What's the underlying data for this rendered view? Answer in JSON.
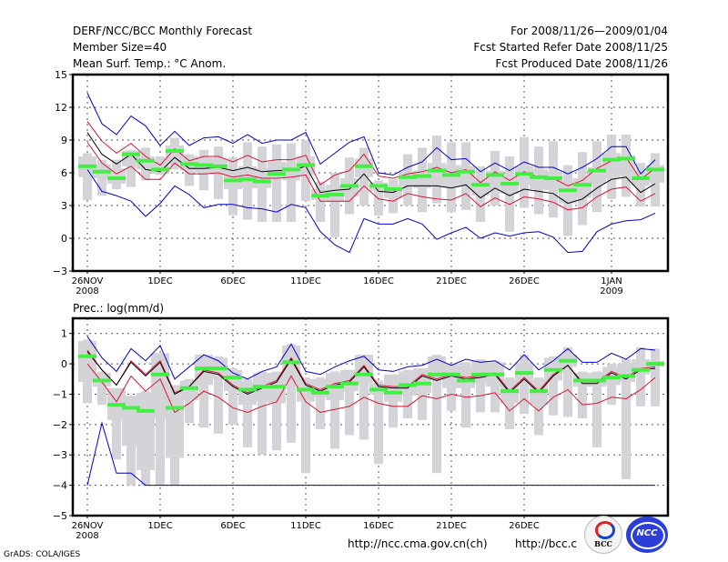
{
  "header": {
    "title": "DERF/NCC/BCC Monthly Forecast",
    "member_size": "Member Size=40",
    "variable": "Mean Surf. Temp.: °C Anom.",
    "period": "For 2008/11/26—2009/01/04",
    "started": "Fcst Started Refer Date 2008/11/25",
    "produced": "Fcst Produced Date 2008/11/26"
  },
  "footer": {
    "grads": "GrADS: COLA/IGES",
    "url_ncc": "http://ncc.cma.gov.cn(ch)",
    "url_bcc": "http://bcc.c",
    "logo_bcc": "BCC",
    "logo_ncc": "NCC"
  },
  "colors": {
    "envelope": "#0000cc",
    "spread": "#dd1133",
    "mean": "#000000",
    "median": "#44ee44",
    "box": "#d4d4d8"
  },
  "chart_data": [
    {
      "type": "line",
      "title": "Mean Surf. Temp.: °C Anom.",
      "xlabel": "",
      "ylabel": "°C Anom.",
      "ylim": [
        -3,
        15
      ],
      "yticks": [
        -3,
        0,
        3,
        6,
        9,
        12,
        15
      ],
      "grid": true,
      "x_start": "2008-11-26",
      "days": 40,
      "xtick_labels": [
        {
          "day": 0,
          "label": "26NOV",
          "sub": "2008"
        },
        {
          "day": 5,
          "label": "1DEC"
        },
        {
          "day": 10,
          "label": "6DEC"
        },
        {
          "day": 15,
          "label": "11DEC"
        },
        {
          "day": 20,
          "label": "16DEC"
        },
        {
          "day": 25,
          "label": "21DEC"
        },
        {
          "day": 30,
          "label": "26DEC"
        },
        {
          "day": 36,
          "label": "1JAN",
          "sub": "2009"
        }
      ],
      "series": [
        {
          "name": "max",
          "color_key": "envelope",
          "values": [
            13.3,
            10.5,
            9.5,
            11.2,
            10.3,
            8.5,
            9.8,
            8.5,
            9.2,
            9.3,
            8.7,
            9.5,
            8.7,
            9.0,
            9.0,
            9.7,
            6.8,
            7.8,
            8.8,
            9.3,
            6.0,
            5.8,
            6.5,
            7.0,
            8.3,
            7.2,
            7.3,
            6.1,
            6.9,
            6.2,
            7.0,
            6.5,
            6.5,
            5.9,
            6.5,
            7.3,
            8.4,
            8.4,
            5.9,
            7.2
          ]
        },
        {
          "name": "upper",
          "color_key": "spread",
          "values": [
            10.7,
            8.9,
            7.8,
            8.7,
            7.5,
            6.7,
            8.2,
            7.1,
            7.5,
            7.5,
            7.0,
            7.6,
            7.0,
            7.2,
            7.2,
            7.6,
            4.9,
            5.8,
            6.2,
            7.7,
            5.7,
            5.5,
            5.9,
            6.1,
            6.5,
            6.0,
            6.3,
            5.1,
            6.1,
            5.3,
            6.1,
            5.6,
            5.5,
            4.8,
            5.3,
            6.4,
            7.1,
            7.4,
            5.4,
            6.4
          ]
        },
        {
          "name": "mean",
          "color_key": "mean",
          "values": [
            9.7,
            7.7,
            6.8,
            7.7,
            6.3,
            6.1,
            7.4,
            6.4,
            6.4,
            6.5,
            6.2,
            6.5,
            6.1,
            6.2,
            6.2,
            6.6,
            4.2,
            4.4,
            4.5,
            5.9,
            4.3,
            4.2,
            4.8,
            4.8,
            4.8,
            4.6,
            4.9,
            3.7,
            4.6,
            3.9,
            4.5,
            4.3,
            4.1,
            3.2,
            3.6,
            4.6,
            5.4,
            5.6,
            4.2,
            5.0
          ]
        },
        {
          "name": "lower",
          "color_key": "spread",
          "values": [
            8.8,
            6.9,
            5.9,
            6.6,
            5.4,
            5.4,
            6.9,
            5.9,
            5.9,
            6.0,
            5.6,
            5.8,
            5.5,
            5.5,
            5.6,
            5.8,
            3.4,
            3.4,
            3.4,
            4.8,
            3.6,
            3.4,
            4.1,
            3.8,
            3.6,
            3.5,
            4.1,
            2.9,
            3.7,
            3.1,
            3.8,
            3.6,
            3.3,
            2.6,
            2.8,
            3.8,
            4.5,
            4.7,
            3.4,
            4.1
          ]
        },
        {
          "name": "min",
          "color_key": "envelope",
          "values": [
            6.3,
            4.3,
            3.9,
            3.4,
            2.0,
            3.2,
            4.8,
            4.0,
            2.8,
            3.1,
            3.1,
            2.8,
            2.7,
            2.4,
            3.1,
            2.8,
            0.6,
            -0.6,
            -1.3,
            1.8,
            1.3,
            1.3,
            1.8,
            1.3,
            -0.1,
            0.5,
            1.0,
            0.0,
            0.5,
            0.2,
            0.5,
            0.6,
            0.1,
            -1.3,
            -1.2,
            0.6,
            1.3,
            1.6,
            1.7,
            2.3
          ]
        },
        {
          "name": "median",
          "color_key": "median",
          "values": [
            6.6,
            6.1,
            5.5,
            7.7,
            7.1,
            6.3,
            8.0,
            6.8,
            6.7,
            6.6,
            5.3,
            5.4,
            5.2,
            5.9,
            6.3,
            6.7,
            3.9,
            4.0,
            4.8,
            6.6,
            4.8,
            4.5,
            5.6,
            5.7,
            6.2,
            5.8,
            6.1,
            4.9,
            5.8,
            5.0,
            5.9,
            5.6,
            5.5,
            4.4,
            4.9,
            6.2,
            7.2,
            7.3,
            5.5,
            6.3
          ]
        },
        {
          "name": "box_q1",
          "color_key": "box",
          "values": [
            5.6,
            5.5,
            5.0,
            6.6,
            6.3,
            5.9,
            6.8,
            6.2,
            6.0,
            5.9,
            4.5,
            4.6,
            4.6,
            5.5,
            5.3,
            5.8,
            3.5,
            3.3,
            3.8,
            5.6,
            4.3,
            3.7,
            4.8,
            4.6,
            4.9,
            4.7,
            4.7,
            3.9,
            4.4,
            4.1,
            4.9,
            4.5,
            4.4,
            3.2,
            3.7,
            5.0,
            5.5,
            5.7,
            4.8,
            5.1
          ]
        },
        {
          "name": "box_q3",
          "color_key": "box",
          "values": [
            7.5,
            6.8,
            6.4,
            8.0,
            7.5,
            7.0,
            8.5,
            7.5,
            7.4,
            7.3,
            6.3,
            6.6,
            6.4,
            7.0,
            6.9,
            7.5,
            4.5,
            4.9,
            5.5,
            7.3,
            5.1,
            4.9,
            6.1,
            6.2,
            6.9,
            6.7,
            6.6,
            5.3,
            6.2,
            5.5,
            6.6,
            6.3,
            6.1,
            5.3,
            5.5,
            6.5,
            7.8,
            7.6,
            6.0,
            6.7
          ]
        },
        {
          "name": "whisker_low",
          "color_key": "box",
          "values": [
            3.5,
            3.9,
            4.5,
            4.7,
            5.3,
            5.8,
            6.3,
            4.8,
            4.4,
            3.6,
            2.1,
            1.7,
            1.5,
            1.5,
            1.5,
            3.4,
            1.5,
            0.1,
            2.2,
            3.0,
            2.1,
            2.3,
            3.0,
            2.4,
            3.2,
            2.4,
            2.6,
            1.5,
            3.0,
            0.6,
            2.8,
            2.2,
            1.9,
            0.2,
            1.2,
            2.4,
            3.6,
            3.8,
            2.9,
            2.9
          ]
        },
        {
          "name": "whisker_high",
          "color_key": "box",
          "values": [
            7.8,
            7.2,
            7.2,
            8.1,
            8.3,
            7.5,
            9.2,
            7.7,
            8.1,
            8.4,
            7.4,
            8.8,
            8.4,
            8.6,
            8.7,
            9.0,
            5.2,
            6.0,
            7.4,
            8.3,
            5.3,
            5.4,
            7.7,
            8.3,
            9.4,
            8.8,
            8.8,
            6.6,
            8.0,
            7.5,
            9.3,
            8.4,
            8.9,
            6.7,
            7.9,
            8.9,
            9.5,
            9.5,
            6.9,
            7.8
          ]
        }
      ]
    },
    {
      "type": "line",
      "title": "Prec.: log(mm/d)",
      "xlabel": "",
      "ylabel": "log(mm/d)",
      "ylim": [
        -5,
        1.5
      ],
      "yticks": [
        -5,
        -4,
        -3,
        -2,
        -1,
        0,
        1
      ],
      "grid": true,
      "x_start": "2008-11-26",
      "days": 40,
      "xtick_labels": [
        {
          "day": 0,
          "label": "26NOV",
          "sub": "2008"
        },
        {
          "day": 5,
          "label": "1DEC"
        },
        {
          "day": 10,
          "label": "6DEC"
        },
        {
          "day": 15,
          "label": "11DEC"
        },
        {
          "day": 20,
          "label": "16DEC"
        },
        {
          "day": 25,
          "label": "21DEC"
        },
        {
          "day": 30,
          "label": "26DEC"
        }
      ],
      "series": [
        {
          "name": "max",
          "color_key": "envelope",
          "values": [
            0.9,
            0.2,
            -0.25,
            0.5,
            0.1,
            0.6,
            -0.5,
            -0.1,
            0.3,
            0.1,
            -0.3,
            -0.5,
            -0.25,
            -0.1,
            0.65,
            -0.25,
            -0.35,
            -0.1,
            0.1,
            0.25,
            -0.2,
            -0.25,
            -0.1,
            -0.05,
            0.15,
            -0.05,
            0.15,
            0.05,
            0.1,
            -0.2,
            0.3,
            -0.2,
            0.1,
            0.5,
            0.05,
            0.05,
            0.35,
            0.15,
            0.5,
            0.45
          ]
        },
        {
          "name": "upper",
          "color_key": "spread",
          "values": [
            0.45,
            -0.2,
            -0.7,
            0.1,
            -0.35,
            0.1,
            -0.95,
            -0.75,
            -0.2,
            -0.3,
            -0.7,
            -0.95,
            -0.75,
            -0.55,
            0.2,
            -0.65,
            -0.85,
            -0.65,
            -0.55,
            -0.05,
            -0.7,
            -0.75,
            -0.75,
            -0.35,
            -0.5,
            -0.35,
            -0.45,
            -0.4,
            -0.3,
            -0.9,
            -0.45,
            -0.9,
            -0.35,
            -0.05,
            -0.6,
            -0.6,
            -0.25,
            -0.45,
            -0.15,
            -0.1
          ]
        },
        {
          "name": "mean",
          "color_key": "mean",
          "values": [
            0.4,
            -0.2,
            -0.7,
            0.05,
            -0.4,
            0.05,
            -1.0,
            -0.75,
            -0.25,
            -0.35,
            -0.75,
            -1.0,
            -0.8,
            -0.6,
            0.15,
            -0.7,
            -0.9,
            -0.7,
            -0.6,
            -0.1,
            -0.75,
            -0.8,
            -0.8,
            -0.4,
            -0.55,
            -0.4,
            -0.5,
            -0.45,
            -0.35,
            -0.95,
            -0.5,
            -0.95,
            -0.4,
            -0.05,
            -0.65,
            -0.65,
            -0.3,
            -0.5,
            -0.2,
            -0.15
          ]
        },
        {
          "name": "lower",
          "color_key": "spread",
          "values": [
            0.0,
            -0.6,
            -1.25,
            -0.4,
            -0.9,
            -0.5,
            -1.6,
            -1.3,
            -0.9,
            -1.1,
            -1.45,
            -1.6,
            -1.4,
            -1.25,
            -0.4,
            -1.25,
            -1.6,
            -1.5,
            -1.4,
            -1.1,
            -1.3,
            -1.4,
            -1.4,
            -1.05,
            -1.15,
            -1.0,
            -1.1,
            -1.05,
            -0.95,
            -1.55,
            -1.15,
            -1.55,
            -1.1,
            -0.85,
            -1.35,
            -1.3,
            -1.1,
            -1.15,
            -0.85,
            -0.45
          ]
        },
        {
          "name": "min",
          "color_key": "envelope",
          "values": [
            -4.0,
            -1.95,
            -3.6,
            -3.6,
            -4.0,
            -4.0,
            -4.0,
            -4.0,
            -4.0,
            -4.0,
            -4.0,
            -4.0,
            -4.0,
            -4.0,
            -4.0,
            -4.0,
            -4.0,
            -4.0,
            -4.0,
            -4.0,
            -4.0,
            -4.0,
            -4.0,
            -4.0,
            -4.0,
            -4.0,
            -4.0,
            -4.0,
            -4.0,
            -4.0,
            -4.0,
            -4.0,
            -4.0,
            -4.0,
            -4.0,
            -4.0,
            -4.0,
            -4.0,
            -4.0,
            -4.0
          ]
        },
        {
          "name": "median",
          "color_key": "median",
          "values": [
            0.25,
            -0.55,
            -1.35,
            -1.45,
            -1.55,
            -0.35,
            -1.45,
            -0.8,
            -0.15,
            -0.15,
            -0.45,
            -0.85,
            -0.75,
            -0.75,
            0.05,
            -0.85,
            -0.95,
            -0.75,
            -0.65,
            -0.35,
            -0.85,
            -0.95,
            -0.7,
            -0.65,
            -0.35,
            -0.35,
            -0.55,
            -0.35,
            -0.35,
            -0.9,
            -0.3,
            -0.9,
            -0.2,
            0.1,
            -0.55,
            -0.55,
            -0.45,
            -0.4,
            -0.2,
            0.0
          ]
        },
        {
          "name": "box_q1",
          "color_key": "box",
          "values": [
            -0.6,
            -0.75,
            -1.85,
            -2.7,
            -3.5,
            -1.8,
            -3.1,
            -1.2,
            -0.7,
            -0.5,
            -0.9,
            -1.35,
            -1.25,
            -1.3,
            -0.6,
            -1.25,
            -1.1,
            -1.2,
            -0.9,
            -0.65,
            -1.0,
            -1.25,
            -1.05,
            -0.95,
            -0.5,
            -0.8,
            -0.8,
            -0.65,
            -0.75,
            -1.3,
            -0.55,
            -1.35,
            -0.55,
            -0.1,
            -0.75,
            -0.75,
            -0.7,
            -0.6,
            -0.35,
            -0.1
          ]
        },
        {
          "name": "box_q3",
          "color_key": "box",
          "values": [
            0.75,
            -0.3,
            -0.8,
            -1.05,
            -0.95,
            0.35,
            -0.7,
            -0.55,
            0.3,
            0.2,
            -0.2,
            -0.6,
            -0.3,
            -0.3,
            0.6,
            -0.5,
            -0.5,
            -0.3,
            -0.2,
            0.3,
            -0.65,
            -0.35,
            -0.25,
            -0.15,
            0.25,
            0.0,
            -0.05,
            0.1,
            0.05,
            -0.5,
            0.05,
            -0.5,
            0.2,
            0.3,
            -0.3,
            -0.3,
            -0.1,
            0.0,
            0.15,
            0.1
          ]
        },
        {
          "name": "whisker_low",
          "color_key": "box",
          "values": [
            -1.3,
            -1.35,
            -3.15,
            -4.0,
            -4.0,
            -4.0,
            -4.0,
            -1.95,
            -2.1,
            -2.3,
            -2.0,
            -2.75,
            -3.0,
            -2.85,
            -2.6,
            -3.6,
            -2.15,
            -2.8,
            -2.35,
            -2.5,
            -3.3,
            -2.1,
            -1.8,
            -1.85,
            -3.6,
            -1.55,
            -2.1,
            -1.6,
            -1.6,
            -2.15,
            -1.65,
            -2.35,
            -1.7,
            -1.75,
            -1.8,
            -2.75,
            -1.35,
            -3.8,
            -1.4,
            -1.4
          ]
        },
        {
          "name": "whisker_high",
          "color_key": "box",
          "values": [
            0.8,
            -0.25,
            -0.8,
            -1.05,
            -0.9,
            0.35,
            -0.7,
            -0.5,
            0.3,
            0.25,
            -0.15,
            -0.5,
            -0.25,
            -0.25,
            0.65,
            -0.45,
            -0.45,
            -0.25,
            -0.2,
            0.3,
            -0.55,
            -0.35,
            -0.2,
            -0.15,
            0.3,
            0.0,
            0.05,
            0.15,
            0.1,
            -0.45,
            0.3,
            -0.45,
            0.25,
            0.55,
            -0.25,
            -0.25,
            0.0,
            0.15,
            0.55,
            0.5
          ]
        }
      ]
    }
  ]
}
